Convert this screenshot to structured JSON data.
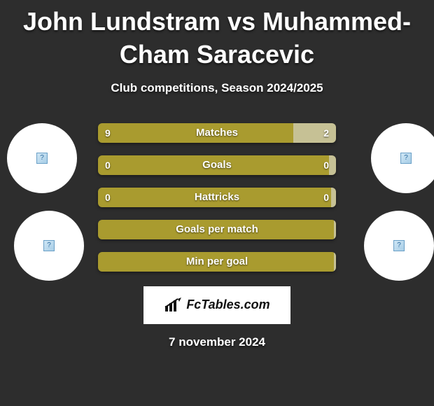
{
  "title": "John Lundstram vs Muhammed-Cham Saracevic",
  "subtitle": "Club competitions, Season 2024/2025",
  "date": "7 november 2024",
  "colors": {
    "background": "#2d2d2d",
    "bar_main": "#a99b2f",
    "bar_alt": "#c6c195",
    "text": "#ffffff",
    "logo_bg": "#ffffff",
    "logo_text": "#111111"
  },
  "typography": {
    "title_fontsize": 36,
    "subtitle_fontsize": 17,
    "bar_label_fontsize": 15,
    "bar_value_fontsize": 14,
    "date_fontsize": 17
  },
  "bars": [
    {
      "label": "Matches",
      "left": "9",
      "right": "2",
      "left_pct": 82,
      "right_pct": 18,
      "left_color": "#a99b2f",
      "right_color": "#c6c195"
    },
    {
      "label": "Goals",
      "left": "0",
      "right": "0",
      "left_pct": 97,
      "right_pct": 3,
      "left_color": "#a99b2f",
      "right_color": "#c6c195"
    },
    {
      "label": "Hattricks",
      "left": "0",
      "right": "0",
      "left_pct": 98,
      "right_pct": 2,
      "left_color": "#a99b2f",
      "right_color": "#c6c195"
    },
    {
      "label": "Goals per match",
      "left": "",
      "right": "",
      "left_pct": 99,
      "right_pct": 1,
      "left_color": "#a99b2f",
      "right_color": "#c6c195"
    },
    {
      "label": "Min per goal",
      "left": "",
      "right": "",
      "left_pct": 99,
      "right_pct": 1,
      "left_color": "#a99b2f",
      "right_color": "#c6c195"
    }
  ],
  "logo": {
    "text": "FcTables.com"
  },
  "avatars": {
    "tl": "player-1-avatar",
    "tr": "player-2-avatar",
    "bl": "team-1-logo",
    "br": "team-2-logo"
  }
}
